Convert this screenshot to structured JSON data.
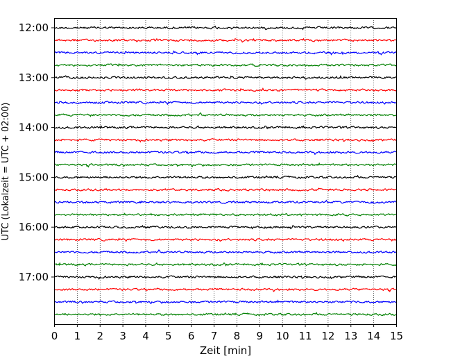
{
  "chart_data": {
    "type": "line",
    "title": "",
    "xlabel": "Zeit  [min]",
    "ylabel": "UTC (Lokalzeit = UTC + 02:00)",
    "xlim": [
      0,
      15
    ],
    "x_ticks": [
      "0",
      "1",
      "2",
      "3",
      "4",
      "5",
      "6",
      "7",
      "8",
      "9",
      "10",
      "11",
      "12",
      "13",
      "14",
      "15"
    ],
    "y_tick_labels": [
      "12:00",
      "13:00",
      "14:00",
      "15:00",
      "16:00",
      "17:00"
    ],
    "grid_x": true,
    "trace_start": "12:00",
    "trace_interval_min": 15,
    "trace_count": 24,
    "trace_colors": [
      "#000000",
      "#ff0000",
      "#0000ff",
      "#008000"
    ]
  }
}
